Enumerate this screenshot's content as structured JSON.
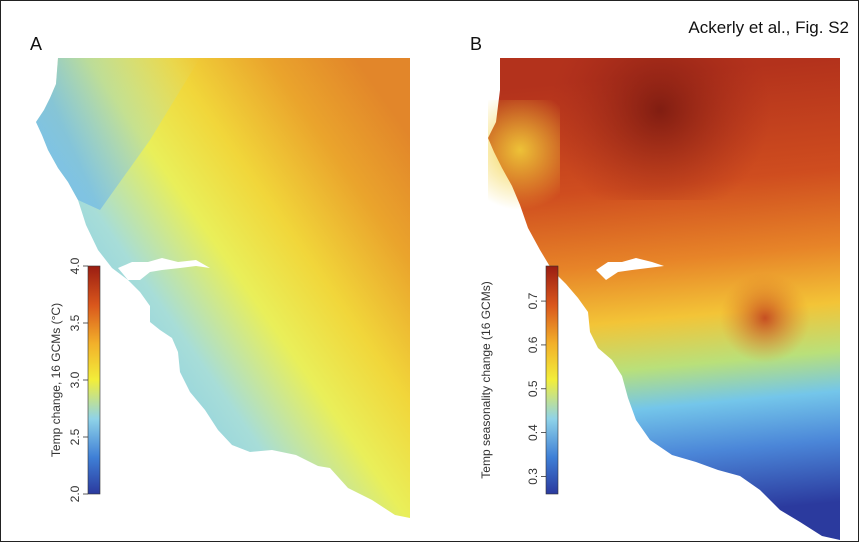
{
  "figure": {
    "caption": "Ackerly et al., Fig. S2"
  },
  "panels": [
    {
      "letter": "A",
      "legend": {
        "title": "Temp change, 16 GCMs (°C)",
        "ticks": [
          "2.0",
          "2.5",
          "3.0",
          "3.5",
          "4.0"
        ],
        "range": [
          2.0,
          4.0
        ]
      }
    },
    {
      "letter": "B",
      "legend": {
        "title": "Temp seasonality change (16 GCMs)",
        "ticks": [
          "0.3",
          "0.4",
          "0.5",
          "0.6",
          "0.7"
        ],
        "range": [
          0.26,
          0.78
        ]
      }
    }
  ],
  "colors": {
    "scale": [
      "#2b3a9e",
      "#3f7fd6",
      "#8fd3e8",
      "#f2ee3a",
      "#f2b02a",
      "#d9561c",
      "#9a1d12"
    ],
    "water": "#ffffff",
    "frame": "#222222"
  }
}
